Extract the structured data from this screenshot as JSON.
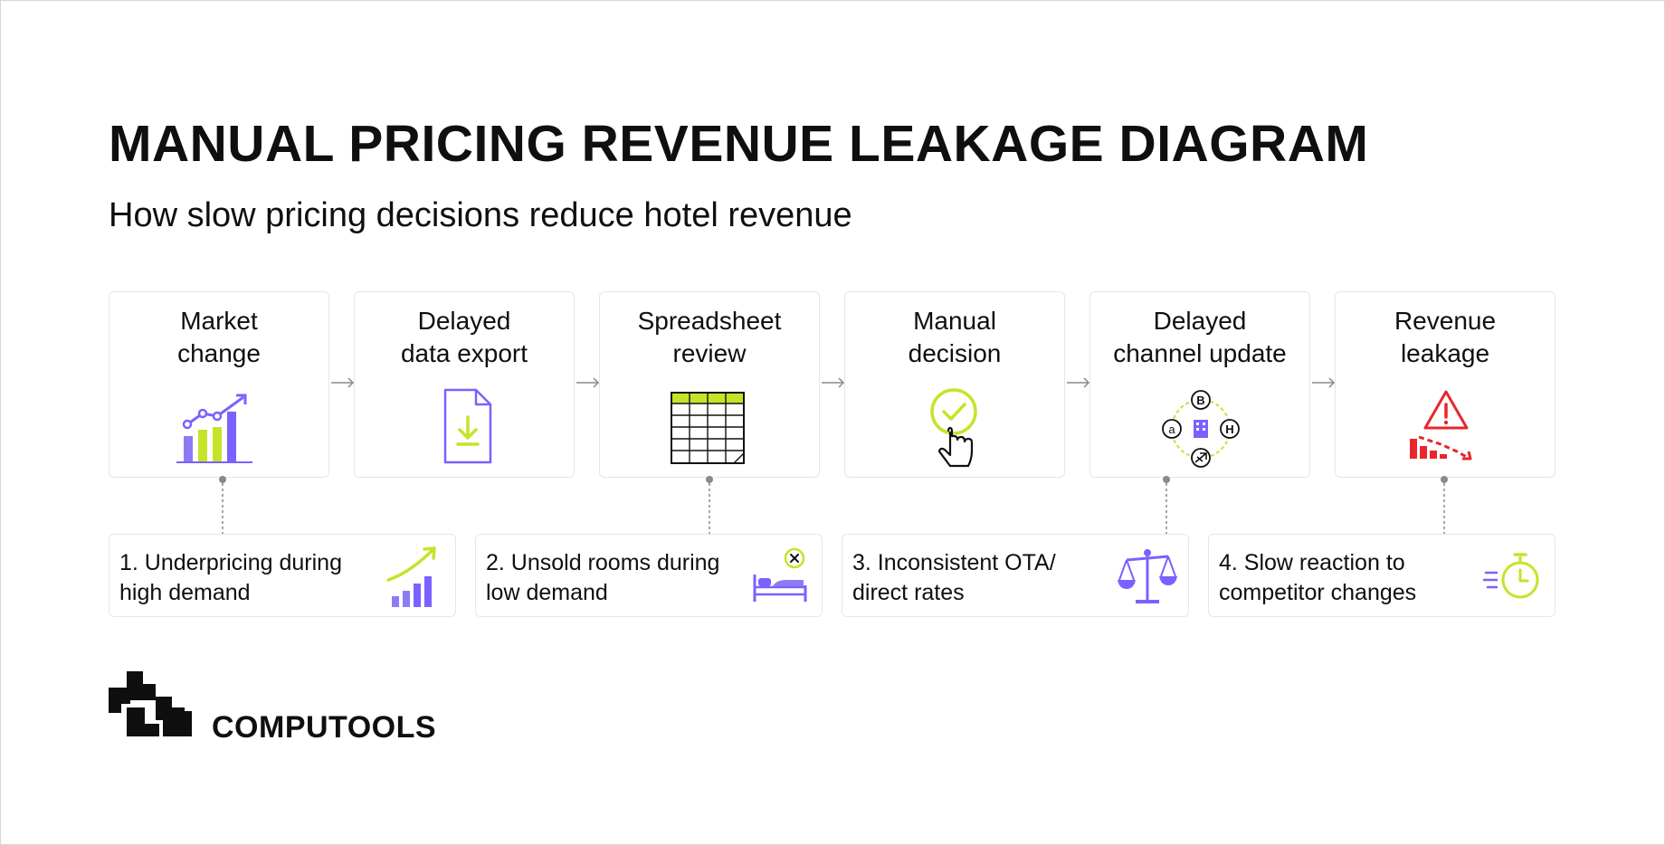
{
  "header": {
    "title": "MANUAL PRICING REVENUE LEAKAGE DIAGRAM",
    "subtitle": "How slow pricing decisions reduce hotel revenue"
  },
  "steps": [
    {
      "label": "Market\nchange",
      "icon": "trend-chart-icon"
    },
    {
      "label": "Delayed\ndata export",
      "icon": "file-download-icon"
    },
    {
      "label": "Spreadsheet\nreview",
      "icon": "spreadsheet-icon"
    },
    {
      "label": "Manual\ndecision",
      "icon": "click-check-icon"
    },
    {
      "label": "Delayed\nchannel update",
      "icon": "channel-network-icon"
    },
    {
      "label": "Revenue\nleakage",
      "icon": "warning-decline-icon"
    }
  ],
  "issues": [
    {
      "label": "1. Underpricing during\nhigh demand",
      "icon": "rising-bars-icon"
    },
    {
      "label": "2. Unsold rooms during\nlow demand",
      "icon": "empty-bed-icon"
    },
    {
      "label": "3. Inconsistent OTA/\ndirect rates",
      "icon": "scales-icon"
    },
    {
      "label": "4. Slow reaction to\ncompetitor changes",
      "icon": "stopwatch-icon"
    }
  ],
  "icon_letters": {
    "top": "B",
    "left": "a",
    "right": "H"
  },
  "brand": {
    "name": "COMPUTOOLS"
  },
  "colors": {
    "purple": "#7b61ff",
    "lime": "#c6e32a",
    "red": "#e8262c",
    "text": "#0f0f10",
    "border": "#e6e6e6",
    "connector": "#8a8a8a"
  }
}
